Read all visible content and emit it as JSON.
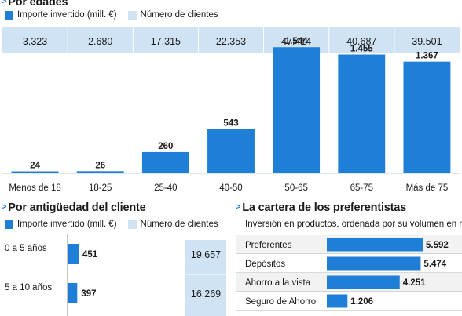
{
  "sections": {
    "ages": {
      "heading": "Por edades",
      "legend_amount": "Importe invertido (mill. €)",
      "legend_clients": "Número de clientes"
    },
    "seniority": {
      "heading": "Por antigüedad del cliente",
      "legend_amount": "Importe invertido (mill. €)",
      "legend_clients": "Número de clientes"
    },
    "portfolio": {
      "heading": "La cartera de los preferentistas",
      "subtitle": "Inversión en productos, ordenada por su volumen en mill. €"
    }
  },
  "colors": {
    "bar": "#1f7fd6",
    "clients_band": "#cfe3f5",
    "divider": "#ffffff",
    "text": "#1a1a1a"
  },
  "chart_data": [
    {
      "type": "bar",
      "title": "Por edades",
      "categories": [
        "Menos de 18",
        "18-25",
        "25-40",
        "40-50",
        "50-65",
        "65-75",
        "Más de 75"
      ],
      "series": [
        {
          "name": "Importe invertido (mill. €)",
          "values": [
            24,
            26,
            260,
            543,
            1544,
            1455,
            1367
          ],
          "labels": [
            "24",
            "26",
            "260",
            "543",
            "1.544",
            "1.455",
            "1.367"
          ]
        },
        {
          "name": "Número de clientes",
          "values": [
            3323,
            2680,
            17315,
            22353,
            47414,
            40687,
            39501
          ],
          "labels": [
            "3.323",
            "2.680",
            "17.315",
            "22.353",
            "47.414",
            "40.687",
            "39.501"
          ]
        }
      ],
      "ylim": [
        0,
        1700
      ]
    },
    {
      "type": "bar",
      "orientation": "horizontal",
      "title": "Por antigüedad del cliente",
      "categories": [
        "0 a 5 años",
        "5 a 10 años"
      ],
      "series": [
        {
          "name": "Importe invertido (mill. €)",
          "values": [
            451,
            397
          ],
          "labels": [
            "451",
            "397"
          ]
        },
        {
          "name": "Número de clientes",
          "values": [
            19657,
            16269
          ],
          "labels": [
            "19.657",
            "16.269"
          ]
        }
      ]
    },
    {
      "type": "bar",
      "orientation": "horizontal",
      "title": "La cartera de los preferentistas",
      "subtitle": "Inversión en productos, ordenada por su volumen en mill. €",
      "categories": [
        "Preferentes",
        "Depósitos",
        "Ahorro a la vista",
        "Seguro de Ahorro"
      ],
      "values": [
        5592,
        5474,
        4251,
        1206
      ],
      "labels": [
        "5.592",
        "5.474",
        "4.251",
        "1.206"
      ]
    }
  ]
}
